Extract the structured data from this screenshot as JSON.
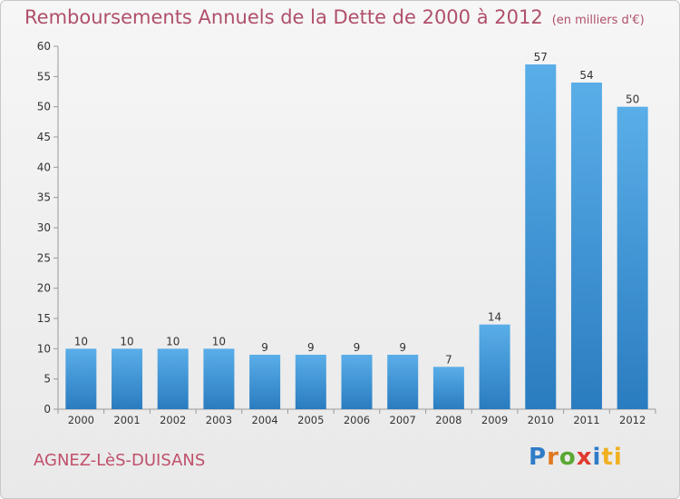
{
  "header": {
    "title": "Remboursements Annuels de la Dette de 2000 à 2012",
    "unit": "(en milliers d'€)"
  },
  "footer": {
    "commune": "AGNEZ-LèS-DUISANS",
    "logo_letters": [
      "P",
      "r",
      "o",
      "x",
      "i",
      "ti"
    ]
  },
  "chart_data": {
    "type": "bar",
    "categories": [
      "2000",
      "2001",
      "2002",
      "2003",
      "2004",
      "2005",
      "2006",
      "2007",
      "2008",
      "2009",
      "2010",
      "2011",
      "2012"
    ],
    "values": [
      10,
      10,
      10,
      10,
      9,
      9,
      9,
      9,
      7,
      14,
      57,
      54,
      50
    ],
    "ylim": [
      0,
      60
    ],
    "yticks": [
      0,
      5,
      10,
      15,
      20,
      25,
      30,
      35,
      40,
      45,
      50,
      55,
      60
    ],
    "grid": false,
    "colors": {
      "bar_top": "#5aaee8",
      "bar_bottom": "#2a7cc0",
      "axis": "#999999",
      "text": "#333333"
    }
  }
}
